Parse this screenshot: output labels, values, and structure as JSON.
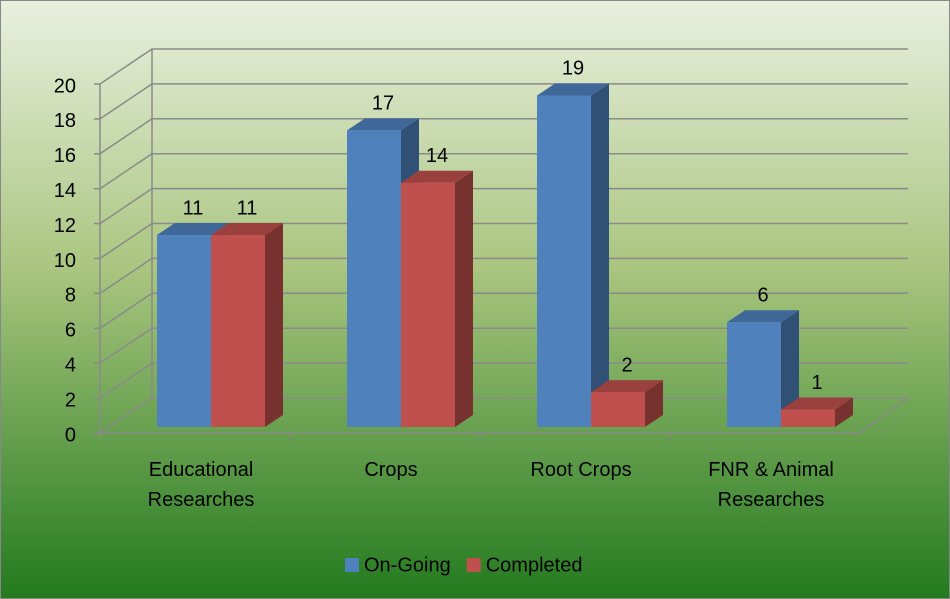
{
  "chart_data": {
    "type": "bar3d",
    "categories": [
      "Educational Researches",
      "Crops",
      "Root Crops",
      "FNR & Animal Researches"
    ],
    "series": [
      {
        "name": "On-Going",
        "color": "#4f81bd",
        "values": [
          11,
          17,
          19,
          6
        ]
      },
      {
        "name": "Completed",
        "color": "#c0504d",
        "values": [
          11,
          14,
          2,
          1
        ]
      }
    ],
    "ylim": [
      0,
      20
    ],
    "yticks": [
      0,
      2,
      4,
      6,
      8,
      10,
      12,
      14,
      16,
      18,
      20
    ],
    "grid": true,
    "legend": "bottom"
  }
}
